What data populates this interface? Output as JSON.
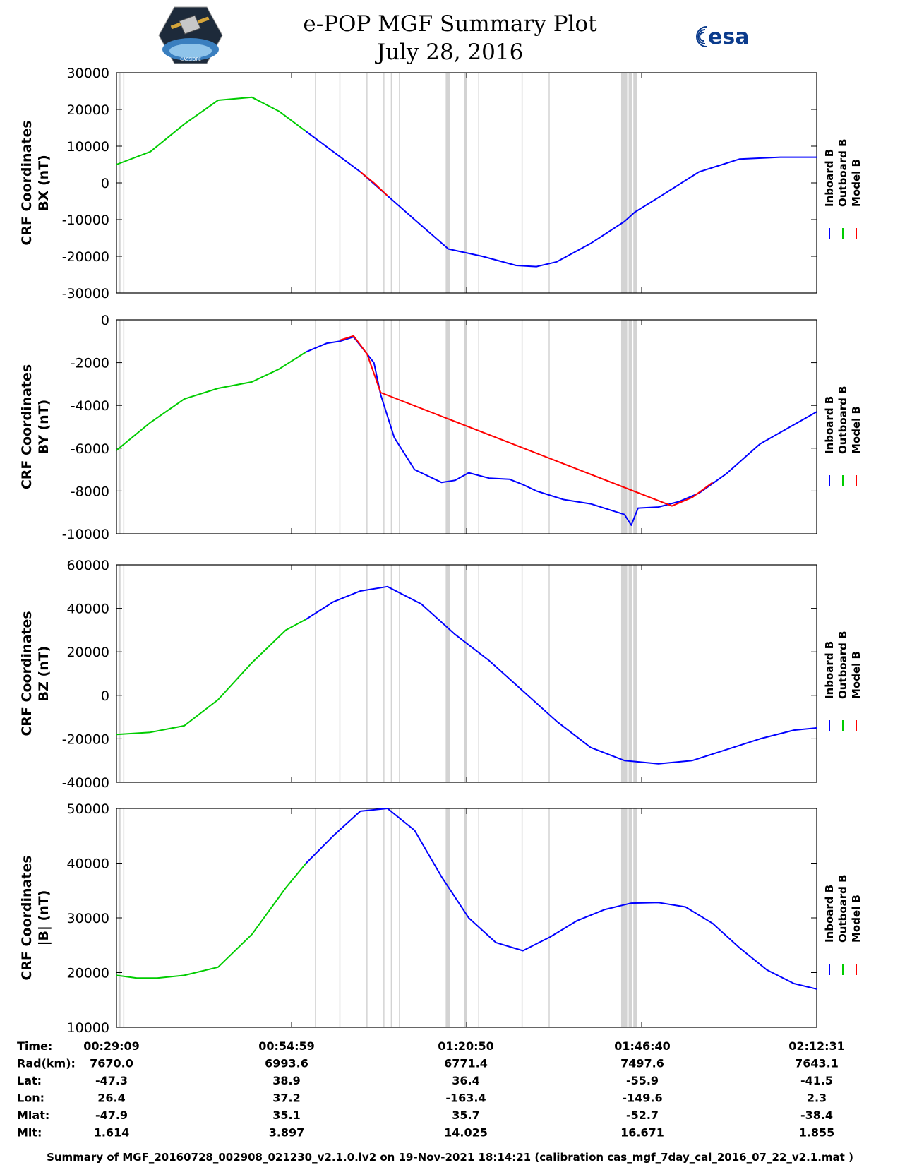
{
  "title": {
    "line1": "e-POP MGF Summary Plot",
    "line2": "July 28, 2016"
  },
  "logos": {
    "left": "CASSIOPE",
    "right": "esa"
  },
  "colors": {
    "inboard": "#0000ff",
    "outboard": "#00cc00",
    "model": "#ff0000",
    "gap": "#d3d3d3"
  },
  "legend": [
    "Inboard B",
    "Outboard B",
    "Model B"
  ],
  "chart_data": {
    "type": "line",
    "x_time_labels": [
      "00:29:09",
      "00:54:59",
      "01:20:50",
      "01:46:40",
      "02:12:31"
    ],
    "xlim_minutes": [
      0,
      103.37
    ],
    "gap_intervals_minutes": [
      [
        0.3,
        0.6
      ],
      [
        1,
        1.1
      ],
      [
        29.3,
        29.4
      ],
      [
        32.9,
        33.0
      ],
      [
        36.9,
        37.0
      ],
      [
        39.4,
        39.5
      ],
      [
        40.5,
        40.6
      ],
      [
        41.7,
        41.8
      ],
      [
        48.6,
        49.2
      ],
      [
        51.3,
        51.7
      ],
      [
        53.4,
        53.5
      ],
      [
        59.8,
        59.9
      ],
      [
        63.8,
        63.9
      ],
      [
        74.5,
        75.4
      ],
      [
        75.6,
        76.1
      ],
      [
        76.3,
        76.8
      ]
    ],
    "panels": [
      {
        "ylabel": "CRF Coordinates\nBX (nT)",
        "ylabel_l1": "CRF Coordinates",
        "ylabel_l2": "BX (nT)",
        "ylim": [
          -30000,
          30000
        ],
        "yticks": [
          -30000,
          -20000,
          -10000,
          0,
          10000,
          20000,
          30000
        ],
        "series": [
          {
            "name": "Outboard B",
            "x": [
              0,
              5,
              10,
              15,
              20,
              24,
              28
            ],
            "y": [
              5000,
              8500,
              16000,
              22500,
              23300,
              19500,
              14000
            ]
          },
          {
            "name": "Inboard B",
            "x": [
              28,
              32,
              36,
              40,
              44,
              49,
              54,
              59,
              62,
              65,
              70,
              75,
              76.5,
              80,
              86,
              92,
              98,
              103.37
            ],
            "y": [
              14000,
              8500,
              3000,
              -3500,
              -10000,
              -18000,
              -20000,
              -22500,
              -22800,
              -21500,
              -16500,
              -10500,
              -8000,
              -4000,
              3000,
              6500,
              7000,
              7000
            ]
          },
          {
            "name": "Model B",
            "x": [
              36,
              38,
              40
            ],
            "y": [
              3000,
              0,
              -3500
            ]
          }
        ]
      },
      {
        "ylabel": "CRF Coordinates\nBY (nT)",
        "ylabel_l1": "CRF Coordinates",
        "ylabel_l2": "BY (nT)",
        "ylim": [
          -10000,
          0
        ],
        "yticks": [
          -10000,
          -8000,
          -6000,
          -4000,
          -2000,
          0
        ],
        "series": [
          {
            "name": "Outboard B",
            "x": [
              0,
              5,
              10,
              15,
              20,
              24,
              28
            ],
            "y": [
              -6100,
              -4800,
              -3700,
              -3200,
              -2900,
              -2300,
              -1500
            ]
          },
          {
            "name": "Inboard B",
            "x": [
              28,
              31,
              33,
              35,
              36,
              38,
              39,
              41,
              44,
              48,
              50,
              52,
              55,
              58,
              60,
              62,
              66,
              70,
              73,
              75,
              76,
              77,
              80,
              83,
              86,
              90,
              95,
              100,
              103.37
            ],
            "y": [
              -1500,
              -1100,
              -1000,
              -800,
              -1200,
              -2000,
              -3500,
              -5500,
              -7000,
              -7600,
              -7500,
              -7150,
              -7400,
              -7450,
              -7700,
              -8000,
              -8400,
              -8600,
              -8900,
              -9100,
              -9600,
              -8800,
              -8750,
              -8500,
              -8100,
              -7200,
              -5800,
              -4900,
              -4300
            ]
          },
          {
            "name": "Model B",
            "x": [
              33,
              35,
              37,
              39,
              82,
              85,
              88
            ],
            "y": [
              -950,
              -750,
              -1600,
              -3400,
              -8700,
              -8300,
              -7600
            ]
          }
        ]
      },
      {
        "ylabel": "CRF Coordinates\nBZ (nT)",
        "ylabel_l1": "CRF Coordinates",
        "ylabel_l2": "BZ (nT)",
        "ylim": [
          -40000,
          60000
        ],
        "yticks": [
          -40000,
          -20000,
          0,
          20000,
          40000,
          60000
        ],
        "series": [
          {
            "name": "Outboard B",
            "x": [
              0,
              5,
              10,
              15,
              20,
              25,
              28
            ],
            "y": [
              -18000,
              -17000,
              -14000,
              -2000,
              15000,
              30000,
              35000
            ]
          },
          {
            "name": "Inboard B",
            "x": [
              28,
              32,
              36,
              40,
              45,
              50,
              55,
              60,
              65,
              70,
              75,
              80,
              85,
              90,
              95,
              100,
              103.37
            ],
            "y": [
              35000,
              43000,
              48000,
              50000,
              42000,
              28000,
              16000,
              2000,
              -12000,
              -24000,
              -30000,
              -31500,
              -30000,
              -25000,
              -20000,
              -16000,
              -15000
            ]
          }
        ]
      },
      {
        "ylabel": "CRF Coordinates\n|B| (nT)",
        "ylabel_l1": "CRF Coordinates",
        "ylabel_l2": "|B| (nT)",
        "ylim": [
          10000,
          50000
        ],
        "yticks": [
          10000,
          20000,
          30000,
          40000,
          50000
        ],
        "series": [
          {
            "name": "Outboard B",
            "x": [
              0,
              3,
              6,
              10,
              15,
              20,
              25,
              28
            ],
            "y": [
              19500,
              19000,
              19000,
              19500,
              21000,
              27000,
              35500,
              40000
            ]
          },
          {
            "name": "Inboard B",
            "x": [
              28,
              32,
              36,
              40,
              44,
              48,
              52,
              56,
              60,
              64,
              68,
              72,
              76,
              80,
              84,
              88,
              92,
              96,
              100,
              103.37
            ],
            "y": [
              40000,
              45000,
              49500,
              50000,
              46000,
              37500,
              30000,
              25500,
              24000,
              26500,
              29500,
              31500,
              32700,
              32800,
              32000,
              29000,
              24500,
              20500,
              18000,
              17000
            ]
          }
        ]
      }
    ]
  },
  "info_table": {
    "labels": [
      "Time:",
      "Rad(km):",
      "Lat:",
      "Lon:",
      "Mlat:",
      "Mlt:"
    ],
    "columns": [
      [
        "00:29:09",
        "7670.0",
        "-47.3",
        "26.4",
        "-47.9",
        "1.614"
      ],
      [
        "00:54:59",
        "6993.6",
        "38.9",
        "37.2",
        "35.1",
        "3.897"
      ],
      [
        "01:20:50",
        "6771.4",
        "36.4",
        "-163.4",
        "35.7",
        "14.025"
      ],
      [
        "01:46:40",
        "7497.6",
        "-55.9",
        "-149.6",
        "-52.7",
        "16.671"
      ],
      [
        "02:12:31",
        "7643.1",
        "-41.5",
        "2.3",
        "-38.4",
        "1.855"
      ]
    ]
  },
  "footer": "Summary of MGF_20160728_002908_021230_v2.1.0.lv2 on 19-Nov-2021 18:14:21 (calibration cas_mgf_7day_cal_2016_07_22_v2.1.mat )"
}
